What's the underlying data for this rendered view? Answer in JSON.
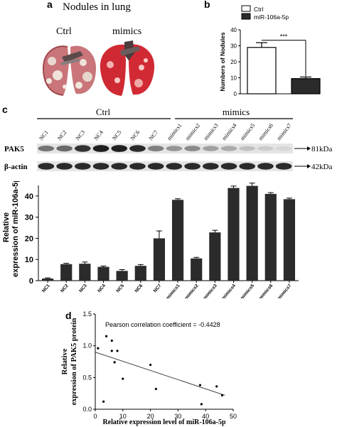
{
  "panel_a": {
    "letter": "a",
    "title": "Nodules in lung",
    "labels": [
      "Ctrl",
      "mimics"
    ]
  },
  "panel_b": {
    "letter": "b",
    "significance": "***",
    "chart_data": {
      "type": "bar",
      "categories": [
        "Ctrl",
        "miR-106a-5p"
      ],
      "values": [
        29,
        9.5
      ],
      "errors": [
        3,
        1
      ],
      "ylabel": "Numbers of Nodules",
      "ylim": [
        0,
        40
      ],
      "yticks": [
        0,
        10,
        20,
        30,
        40
      ],
      "legend": [
        "Ctrl",
        "miR-106a-5p"
      ],
      "colors": [
        "#ffffff",
        "#2b2b2b"
      ]
    }
  },
  "panel_c": {
    "letter": "c",
    "group_labels": [
      "Ctrl",
      "mimics"
    ],
    "lane_labels": [
      "NC1",
      "NC2",
      "NC3",
      "NC4",
      "NC5",
      "NC6",
      "NC7",
      "mimics1",
      "mimics2",
      "mimics3",
      "mimics4",
      "mimics5",
      "mimics6",
      "mimics7"
    ],
    "blot_rows": [
      {
        "label": "PAK5",
        "size": "81kDa",
        "intensity": [
          0.55,
          0.6,
          0.85,
          0.95,
          0.95,
          0.9,
          0.5,
          0.4,
          0.45,
          0.35,
          0.3,
          0.2,
          0.15,
          0.1
        ]
      },
      {
        "label": "β-actin",
        "size": "42kDa",
        "intensity": [
          0.9,
          0.9,
          0.9,
          0.9,
          0.9,
          0.9,
          0.9,
          0.9,
          0.9,
          0.9,
          0.9,
          0.9,
          0.9,
          0.9
        ]
      }
    ],
    "chart_data": {
      "type": "bar",
      "categories": [
        "NC1",
        "NC2",
        "NC3",
        "NC4",
        "NC5",
        "NC6",
        "NC7",
        "mimics1",
        "mimics2",
        "mimics3",
        "mimics4",
        "mimics5",
        "mimics6",
        "mimics7"
      ],
      "values": [
        1,
        7.8,
        8,
        6.5,
        4.6,
        7,
        20,
        38.2,
        10.5,
        22.8,
        43.8,
        44.8,
        41,
        38.5
      ],
      "errors": [
        0.3,
        0.4,
        0.8,
        0.4,
        0.6,
        0.6,
        3.5,
        0.5,
        0.5,
        1.0,
        0.9,
        1.3,
        0.6,
        0.5
      ],
      "ylabel": "Relative expression of miR-106a-5p",
      "ylim": [
        0,
        45
      ],
      "yticks": [
        0,
        10,
        20,
        30,
        40
      ]
    }
  },
  "panel_d": {
    "letter": "d",
    "chart_data": {
      "type": "scatter",
      "x": [
        1,
        3,
        4,
        6,
        6,
        7,
        8,
        10,
        20,
        22,
        38,
        38.5,
        44,
        46
      ],
      "y": [
        0.96,
        0.12,
        1.15,
        0.92,
        1.08,
        0.74,
        0.92,
        0.48,
        0.7,
        0.32,
        0.38,
        0.08,
        0.36,
        0.22
      ],
      "trendline": {
        "x": [
          0,
          47
        ],
        "y": [
          0.9,
          0.22
        ]
      },
      "annotation": "Pearson correlation coefficient = -0.4428",
      "xlabel": "Relative expression level of miR-106a-5p",
      "ylabel": "Relative expression of PAK5 protein",
      "xlim": [
        0,
        50
      ],
      "ylim": [
        0,
        1.5
      ],
      "xticks": [
        0,
        10,
        20,
        30,
        40,
        50
      ],
      "yticks": [
        0.0,
        0.5,
        1.0,
        1.5
      ]
    }
  }
}
